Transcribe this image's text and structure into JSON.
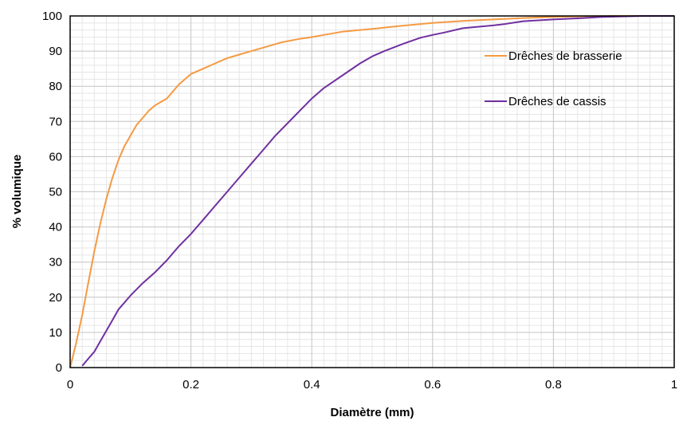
{
  "chart_data": {
    "type": "line",
    "xlabel": "Diamètre (mm)",
    "ylabel": "% volumique",
    "xlim": [
      0,
      1
    ],
    "ylim": [
      0,
      100
    ],
    "x_ticks": [
      "0",
      "0.2",
      "0.4",
      "0.6",
      "0.8",
      "1"
    ],
    "y_ticks": [
      "0",
      "10",
      "20",
      "30",
      "40",
      "50",
      "60",
      "70",
      "80",
      "90",
      "100"
    ],
    "grid": true,
    "minor_grid": true,
    "legend_position": "top-right",
    "series": [
      {
        "name": "Drêches de brasserie",
        "color": "#F59A43",
        "x": [
          0,
          0.01,
          0.02,
          0.03,
          0.04,
          0.05,
          0.06,
          0.07,
          0.08,
          0.09,
          0.1,
          0.11,
          0.12,
          0.13,
          0.14,
          0.15,
          0.16,
          0.17,
          0.18,
          0.19,
          0.2,
          0.22,
          0.24,
          0.26,
          0.28,
          0.3,
          0.32,
          0.35,
          0.38,
          0.4,
          0.42,
          0.45,
          0.48,
          0.5,
          0.55,
          0.6,
          0.65,
          0.7,
          0.75,
          0.8,
          0.85,
          0.9,
          0.95,
          1.0
        ],
        "y": [
          0,
          7,
          15,
          24,
          33,
          41,
          48,
          54,
          59,
          63,
          66,
          69,
          71,
          73,
          74.5,
          75.5,
          76.5,
          78.5,
          80.5,
          82,
          83.5,
          85,
          86.5,
          88,
          89,
          90,
          91,
          92.5,
          93.5,
          94,
          94.6,
          95.5,
          96,
          96.3,
          97.2,
          98,
          98.6,
          99,
          99.4,
          99.7,
          99.9,
          100,
          100,
          100
        ]
      },
      {
        "name": "Drêches de cassis",
        "color": "#7030A0",
        "x": [
          0.02,
          0.03,
          0.04,
          0.05,
          0.06,
          0.07,
          0.08,
          0.1,
          0.12,
          0.14,
          0.16,
          0.18,
          0.2,
          0.22,
          0.24,
          0.26,
          0.28,
          0.3,
          0.32,
          0.34,
          0.36,
          0.38,
          0.4,
          0.42,
          0.45,
          0.48,
          0.5,
          0.52,
          0.55,
          0.58,
          0.6,
          0.62,
          0.65,
          0.68,
          0.7,
          0.72,
          0.75,
          0.8,
          0.85,
          0.88,
          0.9,
          0.95,
          1.0
        ],
        "y": [
          0.5,
          2.5,
          4.5,
          7.5,
          10.5,
          13.5,
          16.5,
          20.5,
          24,
          27,
          30.5,
          34.5,
          38,
          42,
          46,
          50,
          54,
          58,
          62,
          66,
          69.5,
          73,
          76.5,
          79.5,
          83,
          86.5,
          88.5,
          90,
          92,
          93.8,
          94.6,
          95.3,
          96.5,
          97,
          97.3,
          97.7,
          98.5,
          99,
          99.4,
          99.7,
          99.8,
          100,
          100
        ]
      }
    ]
  }
}
